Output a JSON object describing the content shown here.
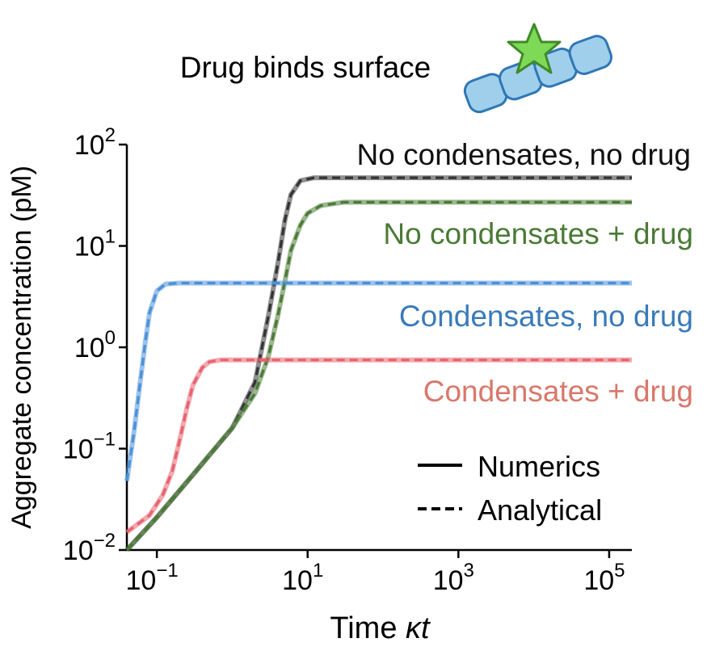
{
  "chart_data": {
    "type": "line",
    "title": "Drug binds surface",
    "xlabel_prefix": "Time ",
    "xlabel_symbol": "κt",
    "ylabel": "Aggregate concentration (pM)",
    "x_scale": "log",
    "y_scale": "log",
    "xlim": [
      0.04,
      200000
    ],
    "ylim": [
      0.01,
      100
    ],
    "x_ticks": [
      {
        "value": 0.1,
        "base": "10",
        "exp": "−1"
      },
      {
        "value": 10,
        "base": "10",
        "exp": "1"
      },
      {
        "value": 1000,
        "base": "10",
        "exp": "3"
      },
      {
        "value": 100000,
        "base": "10",
        "exp": "5"
      }
    ],
    "y_ticks": [
      {
        "value": 0.01,
        "base": "10",
        "exp": "−2"
      },
      {
        "value": 0.1,
        "base": "10",
        "exp": "−1"
      },
      {
        "value": 1,
        "base": "10",
        "exp": "0"
      },
      {
        "value": 10,
        "base": "10",
        "exp": "1"
      },
      {
        "value": 100,
        "base": "10",
        "exp": "2"
      }
    ],
    "series": [
      {
        "name": "No condensates, no drug",
        "color": "#333333",
        "label_color": "#111111",
        "points": [
          [
            0.04,
            0.01
          ],
          [
            0.1,
            0.021
          ],
          [
            0.3,
            0.055
          ],
          [
            1,
            0.16
          ],
          [
            2,
            0.45
          ],
          [
            3,
            2.0
          ],
          [
            4,
            6.5
          ],
          [
            5,
            18
          ],
          [
            6,
            32
          ],
          [
            8,
            44
          ],
          [
            12,
            47
          ],
          [
            30,
            47
          ],
          [
            200000,
            47
          ]
        ]
      },
      {
        "name": "No condensates + drug",
        "color": "#4a7a35",
        "label_color": "#4a7a35",
        "points": [
          [
            0.04,
            0.01
          ],
          [
            0.1,
            0.021
          ],
          [
            0.3,
            0.055
          ],
          [
            1,
            0.16
          ],
          [
            2,
            0.35
          ],
          [
            3,
            0.8
          ],
          [
            4,
            2.0
          ],
          [
            5,
            4.5
          ],
          [
            6,
            9
          ],
          [
            8,
            16
          ],
          [
            10,
            21
          ],
          [
            15,
            25
          ],
          [
            30,
            27
          ],
          [
            200000,
            27
          ]
        ]
      },
      {
        "name": "Condensates, no drug",
        "color": "#4a90d9",
        "label_color": "#3a7ab8",
        "points": [
          [
            0.04,
            0.048
          ],
          [
            0.05,
            0.15
          ],
          [
            0.06,
            0.45
          ],
          [
            0.07,
            1.1
          ],
          [
            0.08,
            2.2
          ],
          [
            0.1,
            3.6
          ],
          [
            0.13,
            4.2
          ],
          [
            0.2,
            4.3
          ],
          [
            200000,
            4.3
          ]
        ]
      },
      {
        "name": "Condensates + drug",
        "color": "#e8616d",
        "label_color": "#d9776a",
        "points": [
          [
            0.04,
            0.015
          ],
          [
            0.08,
            0.022
          ],
          [
            0.12,
            0.035
          ],
          [
            0.16,
            0.06
          ],
          [
            0.2,
            0.12
          ],
          [
            0.25,
            0.25
          ],
          [
            0.3,
            0.42
          ],
          [
            0.4,
            0.63
          ],
          [
            0.5,
            0.72
          ],
          [
            0.7,
            0.75
          ],
          [
            1,
            0.75
          ],
          [
            200000,
            0.75
          ]
        ]
      }
    ],
    "legend": {
      "placement": "bottom-right",
      "entries": [
        {
          "label": "Numerics",
          "style": "solid"
        },
        {
          "label": "Analytical",
          "style": "dashed"
        }
      ]
    },
    "grid": false
  },
  "icons": {
    "aggregate": "fibril-with-bound-drug-icon",
    "fibril_color": "#9fcfeb",
    "fibril_stroke": "#2f77b5",
    "drug_color": "#7ed957",
    "drug_stroke": "#3f8a2a"
  }
}
